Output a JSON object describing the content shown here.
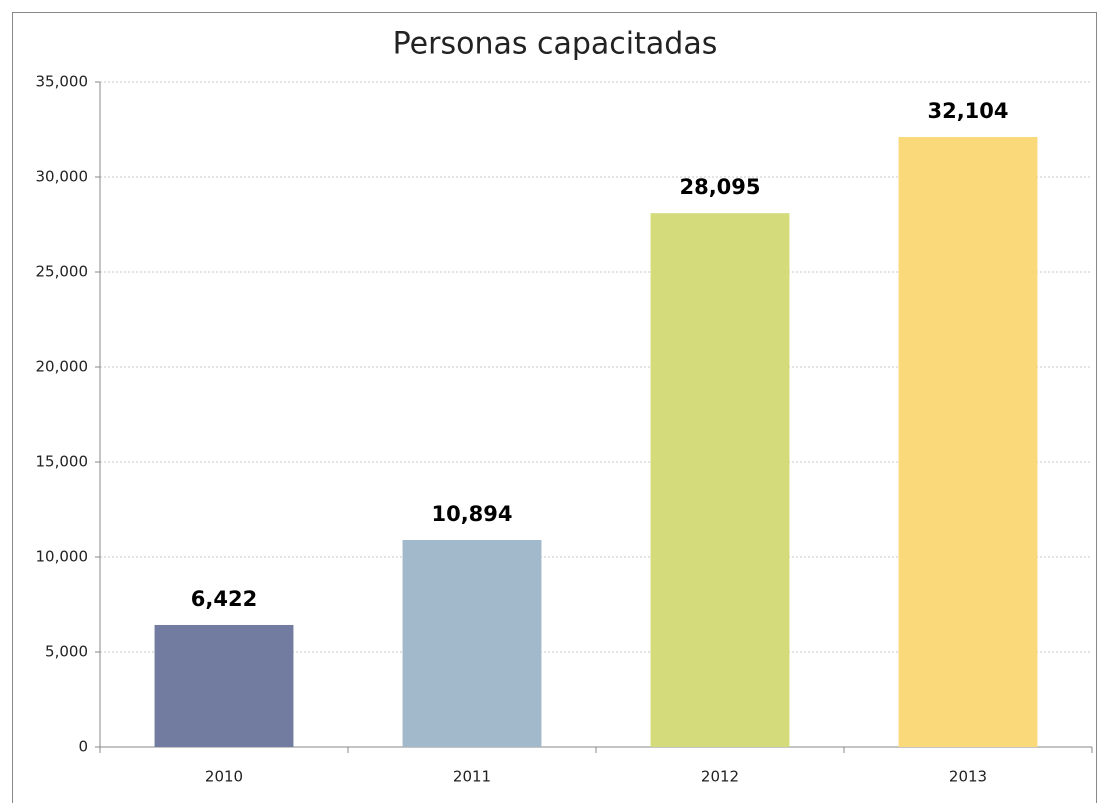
{
  "chart_data": {
    "type": "bar",
    "title": "Personas capacitadas",
    "categories": [
      "2010",
      "2011",
      "2012",
      "2013"
    ],
    "values": [
      6422,
      10894,
      28095,
      32104
    ],
    "value_labels": [
      "6,422",
      "10,894",
      "28,095",
      "32,104"
    ],
    "colors": [
      "#717ca0",
      "#a2b8cb",
      "#d4db7b",
      "#f9d97a"
    ],
    "ylim": [
      0,
      35000
    ],
    "yticks": [
      0,
      {
        "value": 5000,
        "label": "5,000"
      },
      {
        "value": 10000,
        "label": "10,000"
      },
      {
        "value": 15000,
        "label": "15,000"
      },
      {
        "value": 20000,
        "label": "20,000"
      },
      {
        "value": 25000,
        "label": "25,000"
      },
      {
        "value": 30000,
        "label": "30,000"
      },
      {
        "value": 35000,
        "label": "35,000"
      }
    ],
    "grid": true
  }
}
